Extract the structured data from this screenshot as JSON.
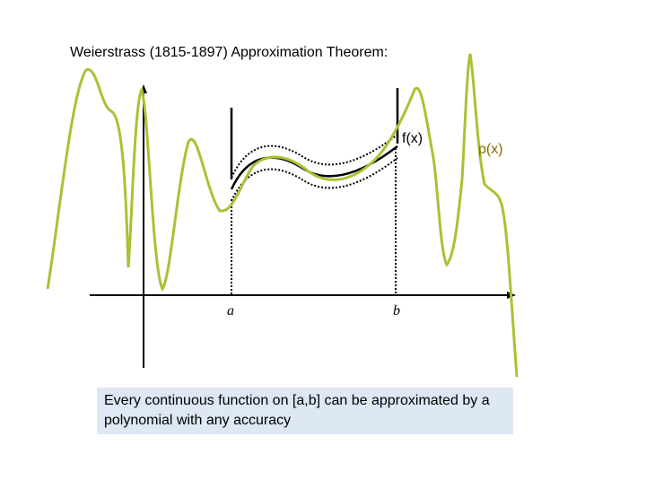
{
  "title": "Weierstrass (1815-1897) Approximation Theorem:",
  "labels": {
    "f": "f(x)",
    "p": "p(x)",
    "a": "a",
    "b": "b"
  },
  "caption": "Every continuous function on [a,b] can be approximated by a polynomial with any accuracy",
  "colors": {
    "polynomial": "#a8c234",
    "function": "#000000",
    "bounds": "#000000",
    "axes": "#000000",
    "caption_bg": "#dde8f4",
    "p_label": "#8a6d00"
  }
}
